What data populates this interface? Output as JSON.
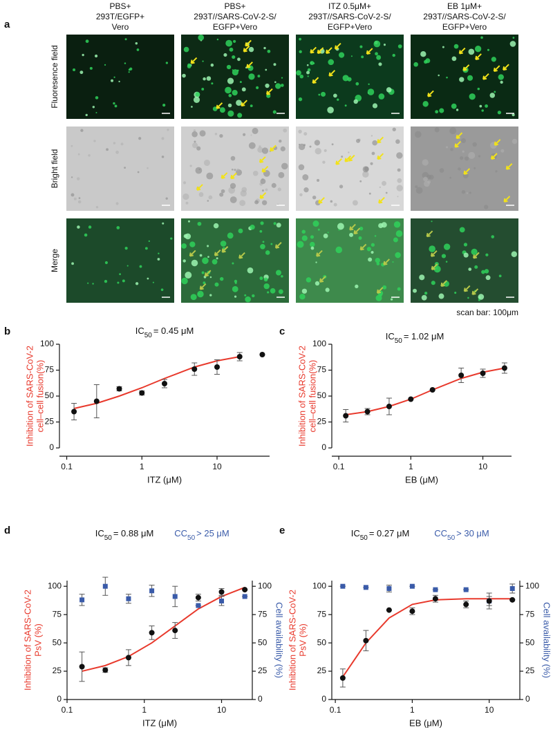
{
  "panel_a": {
    "letter": "a",
    "columns": [
      [
        "PBS+",
        "293T/EGFP+",
        "Vero"
      ],
      [
        "PBS+",
        "293T//SARS-CoV-2-S/",
        "EGFP+Vero"
      ],
      [
        "ITZ 0.5μM+",
        "293T//SARS-CoV-2-S/",
        "EGFP+Vero"
      ],
      [
        "EB 1μM+",
        "293T//SARS-CoV-2-S/",
        "EGFP+Vero"
      ]
    ],
    "rows": [
      "Fluoresence field",
      "Bright field",
      "Merge"
    ],
    "scale_note": "scan bar: 100μm"
  },
  "chart_data": [
    {
      "type": "scatter",
      "panel": "b",
      "title": [
        "IC",
        "50",
        "= 0.45 μM"
      ],
      "ylabel": [
        "Inhibition of SARS-CoV-2",
        "cell–cell fusion(%)"
      ],
      "ylabel_color": "#e8392c",
      "xlabel": "ITZ (μM)",
      "xlog": true,
      "xlim": [
        0.08,
        50
      ],
      "xticks": [
        0.1,
        1,
        10
      ],
      "ylim": [
        0,
        100
      ],
      "yticks": [
        0,
        25,
        50,
        75,
        100
      ],
      "series": [
        {
          "style": "line",
          "color": "#e8392c",
          "x": [
            0.125,
            0.25,
            0.5,
            1,
            2,
            5,
            10,
            20
          ],
          "values": [
            38,
            43,
            50,
            58,
            67,
            78,
            84,
            88
          ]
        },
        {
          "style": "circle",
          "color": "#111111",
          "x": [
            0.125,
            0.25,
            0.5,
            1,
            2,
            5,
            10,
            20,
            40
          ],
          "values": [
            35,
            45,
            57,
            53,
            62,
            76,
            78,
            88,
            90
          ],
          "errors": [
            8,
            16,
            2,
            2,
            4,
            6,
            7,
            4,
            0
          ]
        }
      ]
    },
    {
      "type": "scatter",
      "panel": "c",
      "title": [
        "IC",
        "50",
        "= 1.02 μM"
      ],
      "ylabel": [
        "Inhibition of SARS-CoV-2",
        "cell–cell fusion(%)"
      ],
      "ylabel_color": "#e8392c",
      "xlabel": "EB (μM)",
      "xlog": true,
      "xlim": [
        0.08,
        25
      ],
      "xticks": [
        0.1,
        1,
        10
      ],
      "ylim": [
        0,
        100
      ],
      "yticks": [
        0,
        25,
        50,
        75,
        100
      ],
      "series": [
        {
          "style": "line",
          "color": "#e8392c",
          "x": [
            0.125,
            0.25,
            0.5,
            1,
            2,
            5,
            10,
            20
          ],
          "values": [
            32,
            35,
            40,
            47,
            56,
            67,
            73,
            77
          ]
        },
        {
          "style": "circle",
          "color": "#111111",
          "x": [
            0.125,
            0.25,
            0.5,
            1,
            2,
            5,
            10,
            20
          ],
          "values": [
            31,
            35,
            40,
            47,
            56,
            70,
            72,
            77
          ],
          "errors": [
            6,
            3,
            8,
            0,
            0,
            7,
            4,
            5
          ]
        }
      ]
    },
    {
      "type": "scatter",
      "panel": "d",
      "title": [
        "IC",
        "50",
        "= 0.88 μM"
      ],
      "subtitle": [
        "CC",
        "50",
        "> 25 μM"
      ],
      "subtitle_color": "#3a5ba9",
      "ylabel": [
        "Inhibition of SARS-CoV-2",
        "PsV (%)"
      ],
      "ylabel_color": "#e8392c",
      "y2label": "Cell availability (%)",
      "y2label_color": "#3a5ba9",
      "xlabel": "ITZ (μM)",
      "xlog": true,
      "xlim": [
        0.1,
        25
      ],
      "xticks": [
        0.1,
        1,
        10
      ],
      "ylim": [
        0,
        105
      ],
      "yticks": [
        0,
        25,
        50,
        75,
        100
      ],
      "y2lim": [
        0,
        105
      ],
      "y2ticks": [
        0,
        25,
        50,
        75,
        100
      ],
      "series": [
        {
          "style": "line",
          "color": "#e8392c",
          "x": [
            0.156,
            0.3125,
            0.625,
            1.25,
            2.5,
            5,
            10,
            20
          ],
          "values": [
            25,
            30,
            38,
            50,
            65,
            80,
            91,
            99
          ]
        },
        {
          "style": "square",
          "color": "#3a5ba9",
          "axis": "y2",
          "x": [
            0.156,
            0.3125,
            0.625,
            1.25,
            2.5,
            5,
            10,
            20
          ],
          "values": [
            88,
            100,
            89,
            96,
            91,
            83,
            87,
            91
          ],
          "errors": [
            5,
            8,
            4,
            5,
            9,
            0,
            4,
            0
          ]
        },
        {
          "style": "circle",
          "color": "#111111",
          "x": [
            0.156,
            0.3125,
            0.625,
            1.25,
            2.5,
            5,
            10,
            20
          ],
          "values": [
            29,
            26,
            37,
            59,
            61,
            90,
            95,
            97
          ],
          "errors": [
            13,
            2,
            7,
            6,
            7,
            3,
            3,
            0
          ]
        }
      ]
    },
    {
      "type": "scatter",
      "panel": "e",
      "title": [
        "IC",
        "50",
        "= 0.27 μM"
      ],
      "subtitle": [
        "CC",
        "50",
        "> 30  μM"
      ],
      "subtitle_color": "#3a5ba9",
      "ylabel": [
        "Inhibition of SARS-CoV-2",
        "PsV (%)"
      ],
      "ylabel_color": "#e8392c",
      "y2label": "Cell availability (%)",
      "y2label_color": "#3a5ba9",
      "xlabel": "EB (μM)",
      "xlog": true,
      "xlim": [
        0.09,
        25
      ],
      "xticks": [
        0.1,
        1,
        10
      ],
      "ylim": [
        0,
        105
      ],
      "yticks": [
        0,
        25,
        50,
        75,
        100
      ],
      "y2lim": [
        0,
        105
      ],
      "y2ticks": [
        0,
        25,
        50,
        75,
        100
      ],
      "series": [
        {
          "style": "line",
          "color": "#e8392c",
          "x": [
            0.125,
            0.25,
            0.5,
            1,
            2,
            5,
            10,
            20
          ],
          "values": [
            20,
            50,
            72,
            84,
            88,
            89,
            89,
            89
          ]
        },
        {
          "style": "square",
          "color": "#3a5ba9",
          "axis": "y2",
          "x": [
            0.125,
            0.25,
            0.5,
            1,
            2,
            5,
            10,
            20
          ],
          "values": [
            100,
            99,
            98,
            100,
            97,
            97,
            87,
            98
          ],
          "errors": [
            0,
            0,
            3,
            0,
            0,
            0,
            7,
            4
          ]
        },
        {
          "style": "circle",
          "color": "#111111",
          "x": [
            0.125,
            0.25,
            0.5,
            1,
            2,
            5,
            10,
            20
          ],
          "values": [
            19,
            52,
            79,
            78,
            89,
            84,
            87,
            88
          ],
          "errors": [
            8,
            9,
            0,
            3,
            3,
            3,
            4,
            0
          ]
        }
      ]
    }
  ]
}
